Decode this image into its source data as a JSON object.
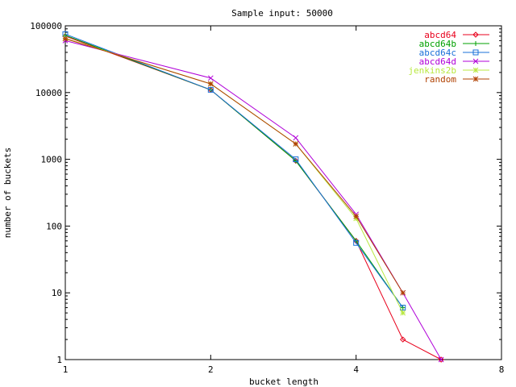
{
  "chart_data": {
    "type": "line",
    "title": "Sample input: 50000",
    "xlabel": "bucket length",
    "ylabel": "number of buckets",
    "x_scale": "log2",
    "y_scale": "log10",
    "xlim": [
      1,
      8
    ],
    "ylim": [
      1,
      100000
    ],
    "x_ticks": [
      {
        "value": 1,
        "label": "1"
      },
      {
        "value": 2,
        "label": "2"
      },
      {
        "value": 4,
        "label": "4"
      },
      {
        "value": 8,
        "label": "8"
      }
    ],
    "y_ticks": [
      {
        "value": 1,
        "label": "1"
      },
      {
        "value": 10,
        "label": "10"
      },
      {
        "value": 100,
        "label": "100"
      },
      {
        "value": 1000,
        "label": "1000"
      },
      {
        "value": 10000,
        "label": "10000"
      },
      {
        "value": 100000,
        "label": "100000"
      }
    ],
    "grid": false,
    "legend_position": "top-right",
    "series": [
      {
        "name": "abcd64",
        "color": "#e8001c",
        "marker": "diamond",
        "x": [
          1,
          2,
          3,
          4,
          5,
          6
        ],
        "y": [
          70000,
          11000,
          950,
          60,
          2,
          1
        ]
      },
      {
        "name": "abcd64b",
        "color": "#00a000",
        "marker": "plus",
        "x": [
          1,
          2,
          3,
          4,
          5
        ],
        "y": [
          72000,
          11000,
          950,
          60,
          6
        ]
      },
      {
        "name": "abcd64c",
        "color": "#1a70d8",
        "marker": "square",
        "x": [
          1,
          2,
          3,
          4,
          5
        ],
        "y": [
          75000,
          11000,
          1000,
          56,
          6
        ]
      },
      {
        "name": "abcd64d",
        "color": "#b000d8",
        "marker": "x",
        "x": [
          1,
          2,
          3,
          4,
          5,
          6
        ],
        "y": [
          60000,
          16500,
          2100,
          150,
          10,
          1
        ]
      },
      {
        "name": "jenkins2b",
        "color": "#b8e840",
        "marker": "star",
        "x": [
          1,
          2,
          3,
          4,
          5
        ],
        "y": [
          65000,
          13500,
          1700,
          130,
          5
        ]
      },
      {
        "name": "random",
        "color": "#b04000",
        "marker": "star",
        "x": [
          1,
          2,
          3,
          4,
          5
        ],
        "y": [
          64000,
          13500,
          1700,
          140,
          10
        ]
      }
    ]
  }
}
